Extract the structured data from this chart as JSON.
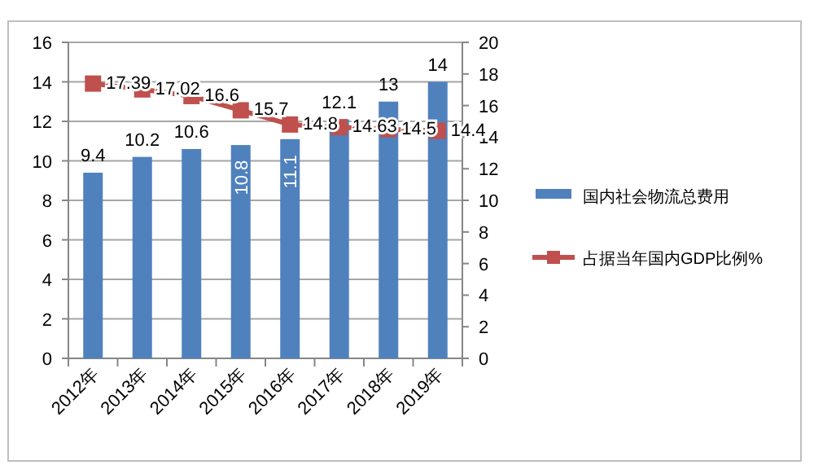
{
  "chart_data": {
    "type": "bar",
    "categories": [
      "2012年",
      "2013年",
      "2014年",
      "2015年",
      "2016年",
      "2017年",
      "2018年",
      "2019年"
    ],
    "series": [
      {
        "name": "国内社会物流总费用",
        "color": "#4f81bd",
        "values": [
          9.4,
          10.2,
          10.6,
          10.8,
          11.1,
          12.1,
          13,
          14
        ]
      },
      {
        "name": "占据当年国内GDP比例%",
        "type": "line",
        "axis": "y2",
        "color": "#c0504d",
        "marker": "square",
        "values": [
          17.39,
          17.02,
          16.6,
          15.7,
          14.8,
          14.63,
          14.5,
          14.4
        ]
      }
    ],
    "ylim": [
      0,
      16
    ],
    "yticks": [
      0,
      2,
      4,
      6,
      8,
      10,
      12,
      14,
      16
    ],
    "y2lim": [
      0,
      20
    ],
    "y2ticks": [
      0,
      2,
      4,
      6,
      8,
      10,
      12,
      14,
      16,
      18,
      20
    ],
    "grid": "y",
    "legend": "right",
    "data_labels": true
  }
}
